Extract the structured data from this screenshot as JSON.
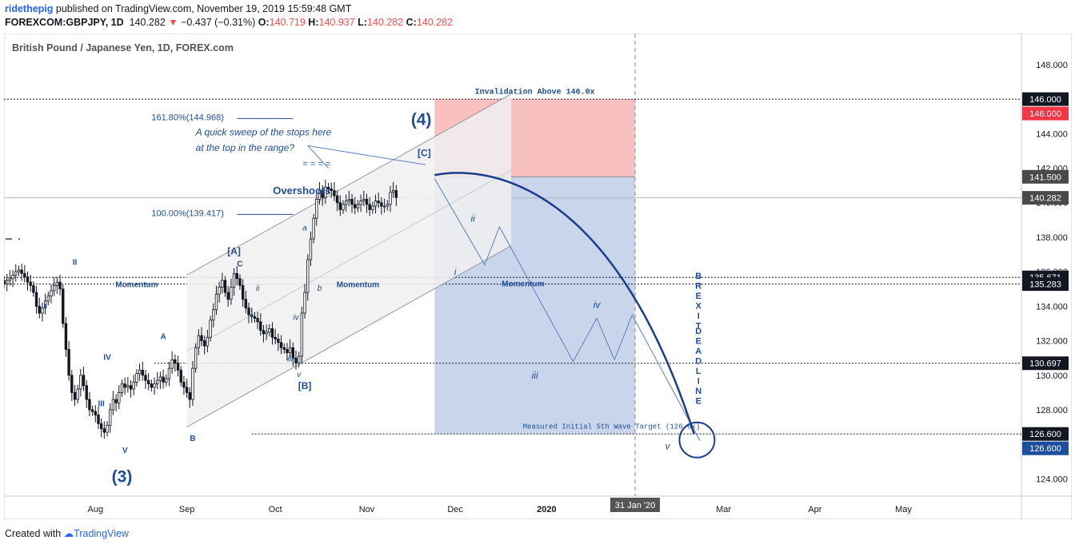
{
  "header": {
    "author": "ridethepig",
    "published_text": "published on TradingView.com, November 19, 2019 15:59:48 GMT",
    "symbol": "FOREXCOM:GBPJPY, 1D",
    "last": "140.282",
    "change": "−0.437 (−0.31%)",
    "o_label": "O:",
    "o": "140.719",
    "h_label": "H:",
    "h": "140.937",
    "l_label": "L:",
    "l": "140.282",
    "c_label": "C:",
    "c": "140.282"
  },
  "footer": {
    "created_with": "Created with",
    "brand": "TradingView"
  },
  "colors": {
    "candle": "#131722",
    "channel_fill": "#f0f0f0",
    "channel_line": "#9598a1",
    "risk_fill": "#f9c0c0",
    "reward_fill": "#c9d5ea",
    "label_blue": "#1e4d9b",
    "wave_line": "#5b7fbf",
    "arc": "#1a3d8f",
    "price_tag_dark": "#131722",
    "price_tag_gray": "#4a4a4a",
    "price_tag_red": "#f23645",
    "price_tag_blue": "#1c4e9d"
  },
  "chart_data": {
    "type": "candlestick",
    "title": "British Pound / Japanese Yen, 1D, FOREX.com",
    "y_axis": {
      "min": 123.0,
      "max": 149.8,
      "ticks": [
        "148.000",
        "146.000",
        "144.000",
        "142.000",
        "140.000",
        "138.000",
        "136.000",
        "134.000",
        "132.000",
        "130.000",
        "128.000",
        "126.000",
        "124.000"
      ]
    },
    "x_axis": {
      "range_days_since_jul1": [
        0,
        345
      ],
      "ticks": [
        {
          "label": "Aug",
          "day": 31
        },
        {
          "label": "Sep",
          "day": 62
        },
        {
          "label": "Oct",
          "day": 92
        },
        {
          "label": "Nov",
          "day": 123
        },
        {
          "label": "Dec",
          "day": 153
        },
        {
          "label": "2020",
          "day": 184
        },
        {
          "label": "Mar",
          "day": 244
        },
        {
          "label": "Apr",
          "day": 275
        },
        {
          "label": "May",
          "day": 305
        }
      ],
      "cursor_label": "31 Jan '20",
      "cursor_day": 214
    },
    "closes": [
      135.3,
      135.5,
      135.6,
      135.8,
      136.0,
      136.1,
      135.9,
      135.7,
      135.4,
      135.2,
      134.8,
      134.0,
      133.6,
      133.9,
      134.3,
      134.6,
      134.9,
      135.2,
      135.4,
      135.0,
      133.0,
      131.5,
      130.0,
      129.0,
      128.6,
      129.2,
      130.0,
      129.4,
      128.6,
      128.0,
      127.9,
      127.7,
      127.2,
      126.9,
      126.7,
      127.1,
      128.0,
      128.6,
      128.4,
      129.0,
      129.5,
      129.3,
      129.4,
      129.2,
      129.6,
      130.1,
      130.3,
      130.0,
      129.7,
      129.5,
      129.3,
      129.5,
      129.7,
      129.9,
      129.6,
      129.8,
      130.4,
      130.9,
      130.7,
      130.3,
      129.6,
      129.3,
      129.0,
      128.6,
      130.4,
      131.6,
      132.3,
      132.0,
      131.7,
      132.2,
      133.2,
      133.8,
      134.7,
      135.1,
      135.5,
      134.8,
      134.4,
      135.1,
      135.9,
      135.6,
      135.2,
      134.4,
      133.9,
      133.5,
      133.4,
      133.3,
      133.1,
      132.6,
      132.4,
      132.5,
      132.7,
      132.2,
      132.1,
      131.9,
      131.6,
      131.5,
      131.3,
      131.6,
      131.0,
      130.7,
      131.1,
      133.6,
      134.8,
      136.7,
      137.9,
      139.1,
      140.2,
      140.7,
      140.3,
      140.9,
      140.8,
      140.7,
      140.4,
      140.0,
      139.6,
      139.9,
      140.1,
      140.2,
      139.9,
      139.7,
      139.9,
      140.1,
      140.2,
      139.9,
      139.6,
      139.8,
      140.1,
      140.0,
      139.8,
      139.8,
      139.9,
      140.6,
      140.7,
      140.3
    ],
    "candles_start_day": 0,
    "horizontal_levels": [
      "146.000",
      "135.671",
      "135.283",
      "130.697",
      "126.600"
    ],
    "price_tags": [
      {
        "label": "146.000",
        "style": "dark"
      },
      {
        "label": "146.000",
        "style": "red"
      },
      {
        "label": "141.500",
        "style": "gray"
      },
      {
        "label": "140.282",
        "style": "gray"
      },
      {
        "label": "135.671",
        "style": "dark"
      },
      {
        "label": "135.283",
        "style": "dark"
      },
      {
        "label": "130.697",
        "style": "dark"
      },
      {
        "label": "126.600",
        "style": "dark"
      },
      {
        "label": "126.600",
        "style": "blue"
      }
    ],
    "channel": {
      "lower_start": [
        62,
        127.0
      ],
      "lower_end": [
        172,
        137.5
      ],
      "width": 8.8
    },
    "position": {
      "start_day": 146,
      "end_day": 214,
      "entry": 141.5,
      "stop": 146.0,
      "target": 126.6
    },
    "forecast_path": [
      [
        146,
        141.4
      ],
      [
        163,
        136.4
      ],
      [
        168,
        138.6
      ],
      [
        193,
        130.8
      ],
      [
        201,
        133.3
      ],
      [
        207,
        130.9
      ],
      [
        213,
        133.5
      ],
      [
        236,
        126.2
      ]
    ],
    "arc": {
      "start": [
        146,
        141.6
      ],
      "peak": [
        160,
        141.8
      ],
      "end": [
        234,
        126.6
      ]
    },
    "fib_levels": [
      {
        "label": "161.80%(144.968)",
        "price": 144.968
      },
      {
        "label": "100.00%(139.417)",
        "price": 139.417
      }
    ],
    "annotations": {
      "invalidation": "Invalidation Above 146.0x",
      "target_text": "Measured Initial 5th Wave Target (126.6x)",
      "overshoots": "Overshoots",
      "eq_marks": "= = = =",
      "sweep_line1": "A quick sweep of the stops here",
      "sweep_line2": "at the top in the range?",
      "momentum": [
        "Momentum",
        "Momentum",
        "Momentum"
      ],
      "brexit": "BREXIT",
      "deadline": "DEADLINE",
      "wave_labels": {
        "w4": "(4)",
        "w3": "(3)",
        "C_bracket": "[C]",
        "A_bracket": "[A]",
        "B_bracket": "[B]",
        "I": "I",
        "II": "II",
        "III": "III",
        "IV": "IV",
        "V": "V",
        "A": "A",
        "B": "B",
        "c": "C",
        "i_a": "i",
        "ii_a": "ii",
        "iii_a": "iii",
        "iv_a": "iv",
        "v_a": "v",
        "a": "a",
        "b": "b",
        "fi": "i",
        "fii": "ii",
        "fiii": "iii",
        "fiv": "iv",
        "fv": "v"
      }
    }
  }
}
